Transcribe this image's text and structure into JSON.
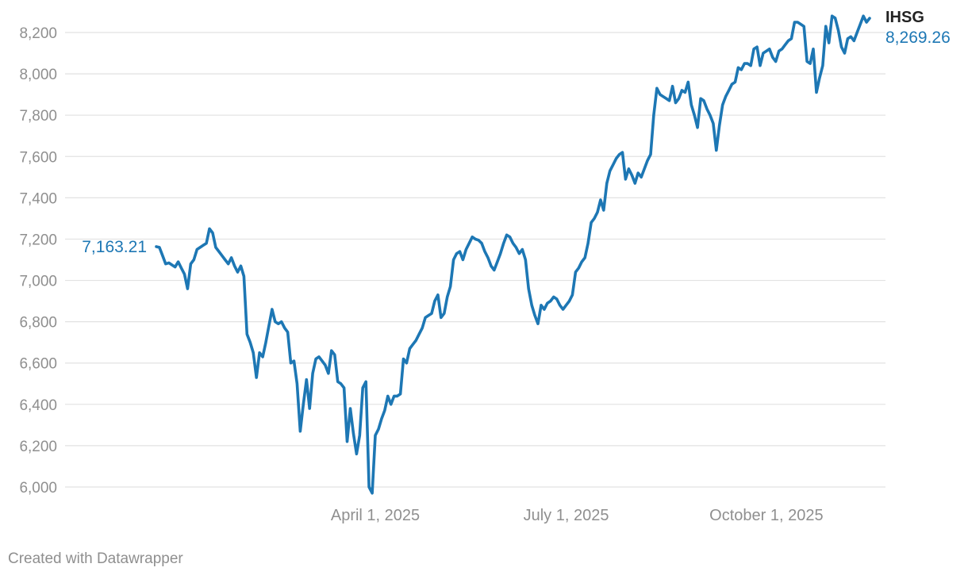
{
  "chart_data": {
    "type": "line",
    "series": [
      {
        "name": "IHSG",
        "start_label": "7,163.21",
        "end_label": "8,269.26",
        "values": [
          7163.21,
          7160,
          7120,
          7080,
          7085,
          7075,
          7065,
          7090,
          7060,
          7030,
          6960,
          7080,
          7100,
          7150,
          7160,
          7170,
          7180,
          7250,
          7230,
          7160,
          7140,
          7120,
          7100,
          7080,
          7110,
          7070,
          7040,
          7070,
          7020,
          6740,
          6700,
          6650,
          6530,
          6650,
          6630,
          6700,
          6780,
          6860,
          6800,
          6790,
          6800,
          6770,
          6750,
          6600,
          6610,
          6500,
          6270,
          6400,
          6520,
          6380,
          6550,
          6620,
          6630,
          6610,
          6590,
          6550,
          6660,
          6640,
          6510,
          6500,
          6480,
          6220,
          6380,
          6260,
          6160,
          6250,
          6480,
          6510,
          6000,
          5970,
          6250,
          6280,
          6330,
          6370,
          6440,
          6400,
          6440,
          6440,
          6450,
          6620,
          6600,
          6670,
          6690,
          6710,
          6740,
          6770,
          6820,
          6830,
          6840,
          6900,
          6930,
          6820,
          6840,
          6920,
          6970,
          7100,
          7130,
          7140,
          7100,
          7150,
          7180,
          7210,
          7200,
          7195,
          7180,
          7140,
          7110,
          7070,
          7050,
          7090,
          7130,
          7180,
          7220,
          7210,
          7180,
          7160,
          7130,
          7150,
          7100,
          6960,
          6880,
          6830,
          6790,
          6880,
          6860,
          6890,
          6900,
          6920,
          6910,
          6880,
          6860,
          6880,
          6900,
          6930,
          7040,
          7060,
          7090,
          7110,
          7180,
          7280,
          7300,
          7330,
          7390,
          7340,
          7470,
          7530,
          7560,
          7590,
          7610,
          7620,
          7490,
          7540,
          7510,
          7470,
          7520,
          7500,
          7540,
          7580,
          7610,
          7800,
          7930,
          7900,
          7890,
          7880,
          7870,
          7940,
          7860,
          7880,
          7920,
          7910,
          7960,
          7850,
          7800,
          7740,
          7880,
          7870,
          7830,
          7800,
          7760,
          7630,
          7750,
          7850,
          7890,
          7920,
          7950,
          7960,
          8030,
          8020,
          8050,
          8050,
          8040,
          8120,
          8130,
          8040,
          8100,
          8110,
          8120,
          8080,
          8060,
          8110,
          8120,
          8140,
          8160,
          8170,
          8250,
          8250,
          8240,
          8230,
          8060,
          8050,
          8120,
          7910,
          7980,
          8040,
          8230,
          8150,
          8280,
          8270,
          8210,
          8130,
          8100,
          8170,
          8180,
          8160,
          8200,
          8240,
          8280,
          8250,
          8269.26
        ]
      }
    ],
    "x_tick_labels": [
      {
        "label": "April 1, 2025",
        "index": 70
      },
      {
        "label": "July 1, 2025",
        "index": 131
      },
      {
        "label": "October 1, 2025",
        "index": 195
      }
    ],
    "y_ticks": [
      6000,
      6200,
      6400,
      6600,
      6800,
      7000,
      7200,
      7400,
      7600,
      7800,
      8000,
      8200
    ],
    "y_tick_labels": [
      "6,000",
      "6,200",
      "6,400",
      "6,600",
      "6,800",
      "7,000",
      "7,200",
      "7,400",
      "7,600",
      "7,800",
      "8,000",
      "8,200"
    ],
    "ylim": [
      6000,
      8200
    ],
    "grid": true,
    "colors": {
      "line": "#1d77b4",
      "grid": "#e2e2e2",
      "axis_text": "#8f8f8f",
      "name_text": "#222222"
    }
  },
  "footer": {
    "credit": "Created with Datawrapper"
  }
}
